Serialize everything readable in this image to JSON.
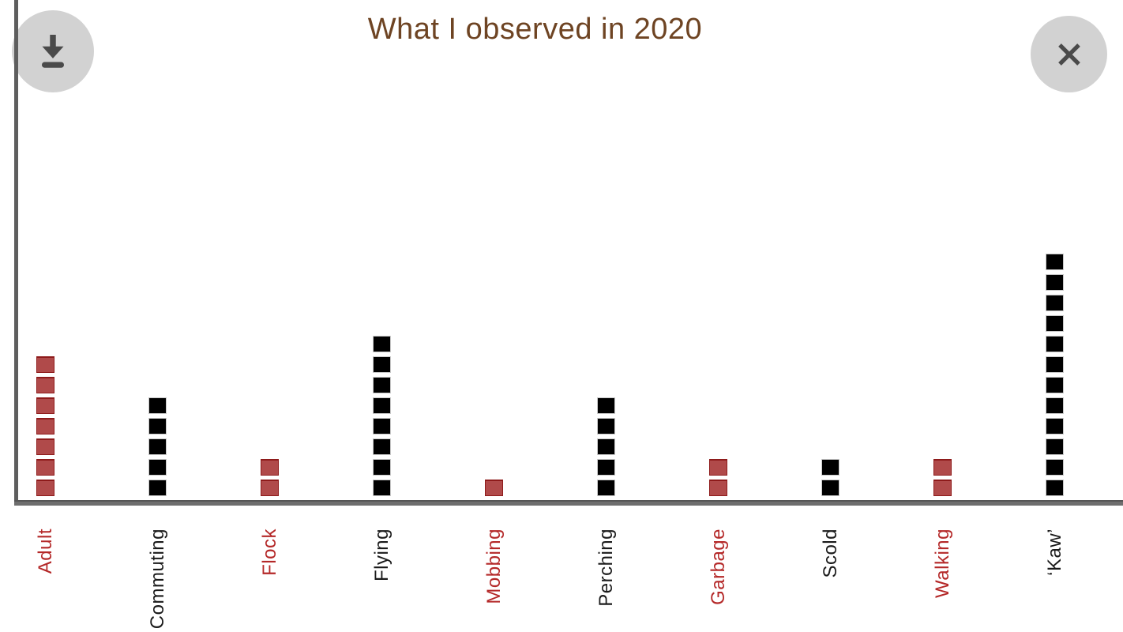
{
  "title": "What I observed in 2020",
  "header": {
    "download_icon": "download-icon",
    "close_icon": "close-icon"
  },
  "colors": {
    "title_text": "#6E4423",
    "axis_line": "#5E5E5E",
    "red_square_fill": "#B04A4A",
    "red_square_edge": "#8E1B1B",
    "black_square_fill": "#000000",
    "black_square_edge": "#C8C8C8",
    "red_label_text": "#B42828",
    "black_label_text": "#1A1A1A",
    "button_background": "#D2D2D2",
    "button_icon": "#4A4A4A"
  },
  "chart_data": {
    "type": "bar",
    "style": "waffle-pictograph (stacked unit squares, 1 square per count)",
    "title": "What I observed in 2020",
    "categories": [
      "Adult",
      "Commuting",
      "Flock",
      "Flying",
      "Mobbing",
      "Perching",
      "Garbage",
      "Scold",
      "Walking",
      "‘Kaw’"
    ],
    "values": [
      7,
      5,
      2,
      8,
      1,
      5,
      2,
      2,
      2,
      12
    ],
    "bar_colors": [
      "red",
      "black",
      "red",
      "black",
      "red",
      "black",
      "red",
      "black",
      "red",
      "black"
    ],
    "label_colors": [
      "red",
      "black",
      "red",
      "black",
      "red",
      "black",
      "red",
      "black",
      "red",
      "black"
    ],
    "xlabel": "",
    "ylabel": "",
    "ylim": [
      0,
      12
    ],
    "grid": false,
    "legend": "none",
    "x_tick_rotation": 90
  }
}
